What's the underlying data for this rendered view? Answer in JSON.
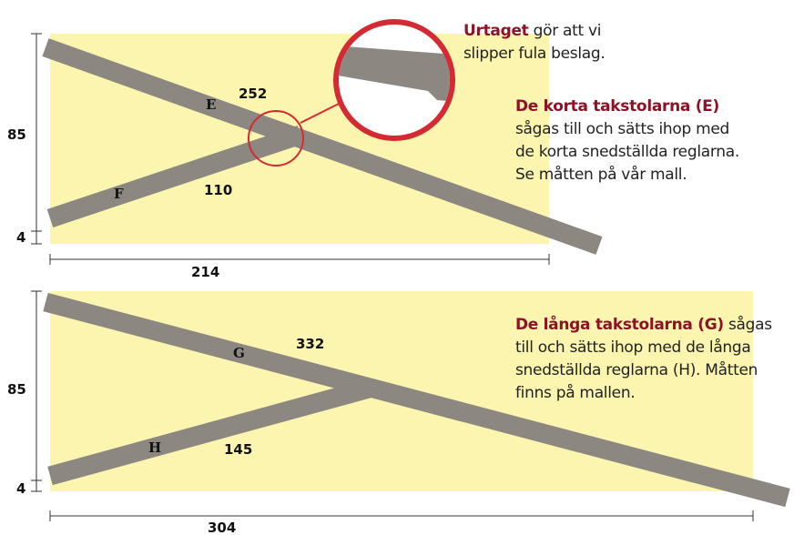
{
  "panels": [
    {
      "callout": {
        "bold": "Urtaget",
        "lines": [
          "gör att vi",
          "slipper fula beslag."
        ]
      },
      "note": {
        "heading": "De korta takstolarna (E)",
        "lines": [
          "sågas till och sätts ihop med",
          "de korta snedställda reglarna.",
          "Se måtten på vår mall."
        ]
      },
      "height": "85",
      "offset": "4",
      "width": "214",
      "rafter_length": "252",
      "brace_length": "110",
      "rafter_label": "E",
      "brace_label": "F"
    },
    {
      "note": {
        "heading": "De långa takstolarna (G)",
        "lines": [
          "sågas",
          "till och sätts ihop med de långa",
          "snedställda reglarna (H). Måtten",
          "finns på mallen."
        ]
      },
      "height": "85",
      "offset": "4",
      "width": "304",
      "rafter_length": "332",
      "brace_length": "145",
      "rafter_label": "G",
      "brace_label": "H"
    }
  ]
}
